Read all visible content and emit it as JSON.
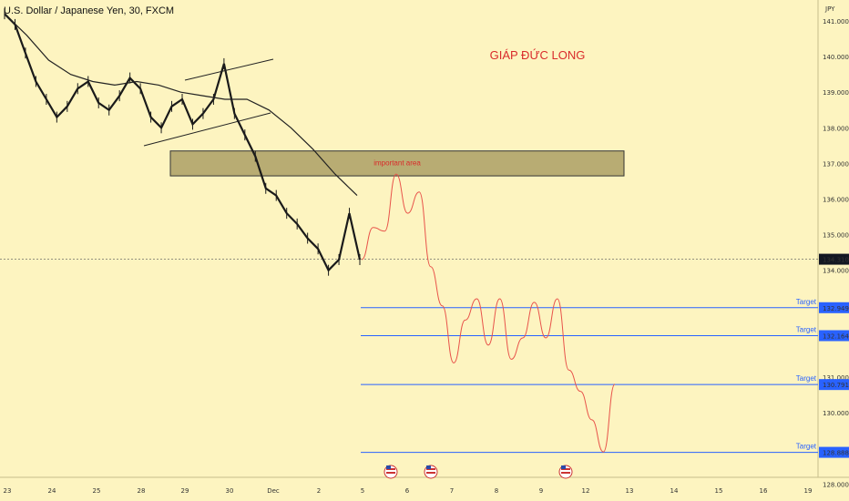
{
  "chart_data": {
    "type": "line",
    "title": "U.S. Dollar / Japanese Yen, 30, FXCM",
    "yunit": "JPY",
    "watermark": "GIÁP ĐỨC LONG",
    "ylim": [
      127.8,
      141.6
    ],
    "yticks": [
      "141.000",
      "140.000",
      "139.000",
      "138.000",
      "137.000",
      "136.000",
      "135.000",
      "134.000",
      "131.000",
      "130.000",
      "128.000"
    ],
    "xticks": [
      "23",
      "24",
      "25",
      "28",
      "29",
      "30",
      "Dec",
      "2",
      "5",
      "6",
      "7",
      "8",
      "9",
      "12",
      "13",
      "14",
      "15",
      "16",
      "19"
    ],
    "current_price": "134.310",
    "important_area": {
      "label": "important area",
      "low": 136.65,
      "high": 137.35
    },
    "targets": [
      {
        "label": "Target",
        "value": "132.949"
      },
      {
        "label": "Target",
        "value": "132.164"
      },
      {
        "label": "Target",
        "value": "130.791"
      },
      {
        "label": "Target",
        "value": "128.888"
      }
    ],
    "series": [
      {
        "values": [
          141.2,
          140.9,
          140.1,
          139.3,
          138.8,
          138.3,
          138.6,
          139.1,
          139.3,
          138.7,
          138.5,
          138.9,
          139.4,
          139.1,
          138.3,
          138.0,
          138.6,
          138.8,
          138.1,
          138.4,
          138.8,
          139.8,
          138.4,
          137.8,
          137.2,
          136.3,
          136.1,
          135.6,
          135.3,
          134.9,
          134.6,
          134.0,
          134.3,
          135.6,
          134.3
        ]
      },
      {
        "values": [
          141.2,
          140.6,
          139.9,
          139.5,
          139.3,
          139.2,
          139.3,
          139.2,
          139.0,
          138.9,
          138.8,
          138.8,
          138.5,
          138.0,
          137.4,
          136.7,
          136.1
        ]
      },
      {
        "values": [
          134.3,
          135.2,
          135.1,
          136.7,
          135.6,
          136.2,
          134.1,
          133.0,
          131.4,
          132.6,
          133.2,
          131.9,
          133.2,
          131.5,
          132.1,
          133.1,
          132.1,
          133.2,
          131.2,
          130.6,
          129.8,
          128.9,
          130.8
        ]
      }
    ],
    "grid": false,
    "colors": {
      "background": "#fdf4c0",
      "bars": "#1a1a1a",
      "projection": "#e8534a",
      "target_line": "#2962ff",
      "zone": "#b8ac73",
      "text_red": "#d92b2b"
    }
  }
}
